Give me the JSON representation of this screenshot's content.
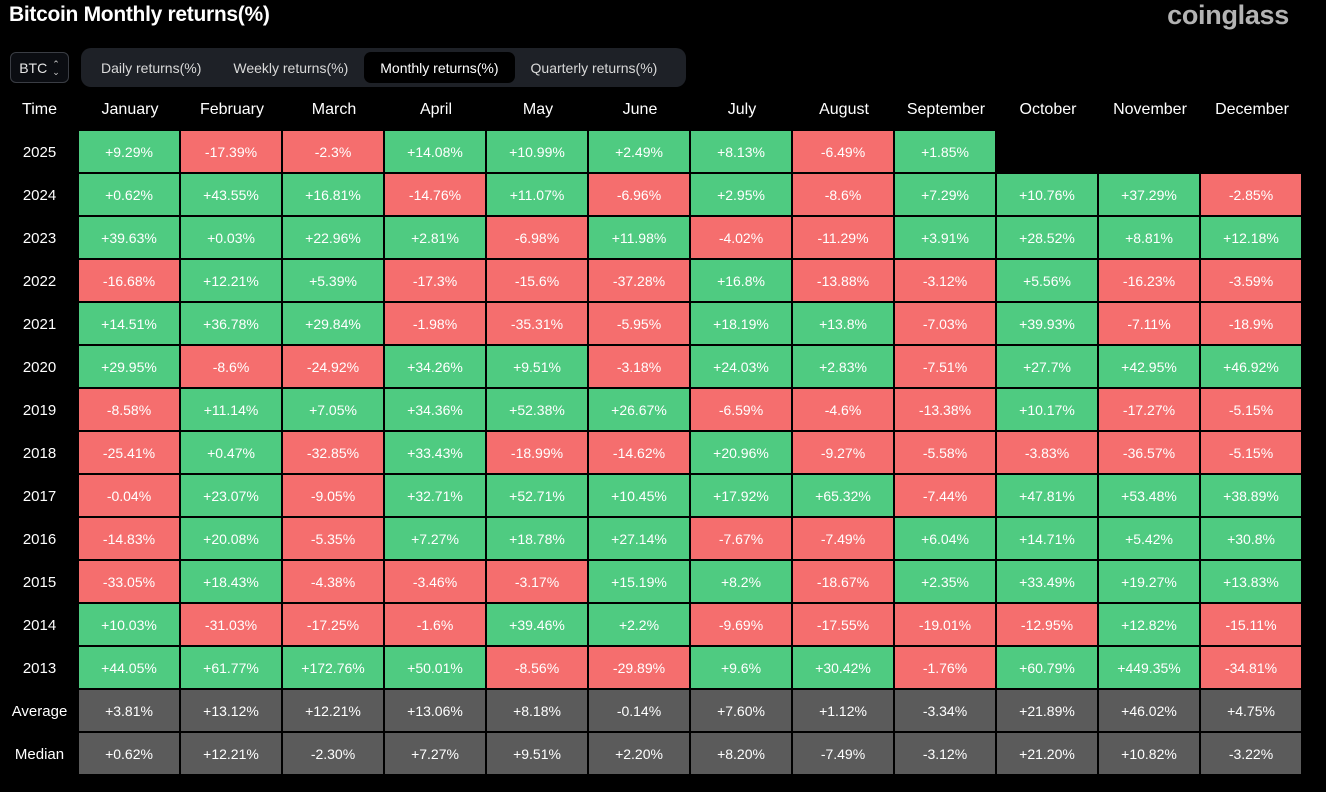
{
  "header": {
    "title": "Bitcoin Monthly returns(%)",
    "logo": "coinglass"
  },
  "symbol_select": {
    "value": "BTC",
    "icon": "chevron-up-down-icon"
  },
  "tabs": [
    {
      "label": "Daily returns(%)",
      "active": false
    },
    {
      "label": "Weekly returns(%)",
      "active": false
    },
    {
      "label": "Monthly returns(%)",
      "active": true
    },
    {
      "label": "Quarterly returns(%)",
      "active": false
    }
  ],
  "colors": {
    "positive": "#4fcb81",
    "negative": "#f56e6e",
    "summary": "#5b5b5b",
    "background": "#000000"
  },
  "table": {
    "time_header": "Time",
    "months": [
      "January",
      "February",
      "March",
      "April",
      "May",
      "June",
      "July",
      "August",
      "September",
      "October",
      "November",
      "December"
    ],
    "rows": [
      {
        "year": "2025",
        "values": [
          "+9.29%",
          "-17.39%",
          "-2.3%",
          "+14.08%",
          "+10.99%",
          "+2.49%",
          "+8.13%",
          "-6.49%",
          "+1.85%",
          "",
          "",
          ""
        ]
      },
      {
        "year": "2024",
        "values": [
          "+0.62%",
          "+43.55%",
          "+16.81%",
          "-14.76%",
          "+11.07%",
          "-6.96%",
          "+2.95%",
          "-8.6%",
          "+7.29%",
          "+10.76%",
          "+37.29%",
          "-2.85%"
        ]
      },
      {
        "year": "2023",
        "values": [
          "+39.63%",
          "+0.03%",
          "+22.96%",
          "+2.81%",
          "-6.98%",
          "+11.98%",
          "-4.02%",
          "-11.29%",
          "+3.91%",
          "+28.52%",
          "+8.81%",
          "+12.18%"
        ]
      },
      {
        "year": "2022",
        "values": [
          "-16.68%",
          "+12.21%",
          "+5.39%",
          "-17.3%",
          "-15.6%",
          "-37.28%",
          "+16.8%",
          "-13.88%",
          "-3.12%",
          "+5.56%",
          "-16.23%",
          "-3.59%"
        ]
      },
      {
        "year": "2021",
        "values": [
          "+14.51%",
          "+36.78%",
          "+29.84%",
          "-1.98%",
          "-35.31%",
          "-5.95%",
          "+18.19%",
          "+13.8%",
          "-7.03%",
          "+39.93%",
          "-7.11%",
          "-18.9%"
        ]
      },
      {
        "year": "2020",
        "values": [
          "+29.95%",
          "-8.6%",
          "-24.92%",
          "+34.26%",
          "+9.51%",
          "-3.18%",
          "+24.03%",
          "+2.83%",
          "-7.51%",
          "+27.7%",
          "+42.95%",
          "+46.92%"
        ]
      },
      {
        "year": "2019",
        "values": [
          "-8.58%",
          "+11.14%",
          "+7.05%",
          "+34.36%",
          "+52.38%",
          "+26.67%",
          "-6.59%",
          "-4.6%",
          "-13.38%",
          "+10.17%",
          "-17.27%",
          "-5.15%"
        ]
      },
      {
        "year": "2018",
        "values": [
          "-25.41%",
          "+0.47%",
          "-32.85%",
          "+33.43%",
          "-18.99%",
          "-14.62%",
          "+20.96%",
          "-9.27%",
          "-5.58%",
          "-3.83%",
          "-36.57%",
          "-5.15%"
        ]
      },
      {
        "year": "2017",
        "values": [
          "-0.04%",
          "+23.07%",
          "-9.05%",
          "+32.71%",
          "+52.71%",
          "+10.45%",
          "+17.92%",
          "+65.32%",
          "-7.44%",
          "+47.81%",
          "+53.48%",
          "+38.89%"
        ]
      },
      {
        "year": "2016",
        "values": [
          "-14.83%",
          "+20.08%",
          "-5.35%",
          "+7.27%",
          "+18.78%",
          "+27.14%",
          "-7.67%",
          "-7.49%",
          "+6.04%",
          "+14.71%",
          "+5.42%",
          "+30.8%"
        ]
      },
      {
        "year": "2015",
        "values": [
          "-33.05%",
          "+18.43%",
          "-4.38%",
          "-3.46%",
          "-3.17%",
          "+15.19%",
          "+8.2%",
          "-18.67%",
          "+2.35%",
          "+33.49%",
          "+19.27%",
          "+13.83%"
        ]
      },
      {
        "year": "2014",
        "values": [
          "+10.03%",
          "-31.03%",
          "-17.25%",
          "-1.6%",
          "+39.46%",
          "+2.2%",
          "-9.69%",
          "-17.55%",
          "-19.01%",
          "-12.95%",
          "+12.82%",
          "-15.11%"
        ]
      },
      {
        "year": "2013",
        "values": [
          "+44.05%",
          "+61.77%",
          "+172.76%",
          "+50.01%",
          "-8.56%",
          "-29.89%",
          "+9.6%",
          "+30.42%",
          "-1.76%",
          "+60.79%",
          "+449.35%",
          "-34.81%"
        ]
      }
    ],
    "summary_rows": [
      {
        "label": "Average",
        "values": [
          "+3.81%",
          "+13.12%",
          "+12.21%",
          "+13.06%",
          "+8.18%",
          "-0.14%",
          "+7.60%",
          "+1.12%",
          "-3.34%",
          "+21.89%",
          "+46.02%",
          "+4.75%"
        ]
      },
      {
        "label": "Median",
        "values": [
          "+0.62%",
          "+12.21%",
          "-2.30%",
          "+7.27%",
          "+9.51%",
          "+2.20%",
          "+8.20%",
          "-7.49%",
          "-3.12%",
          "+21.20%",
          "+10.82%",
          "-3.22%"
        ]
      }
    ]
  }
}
